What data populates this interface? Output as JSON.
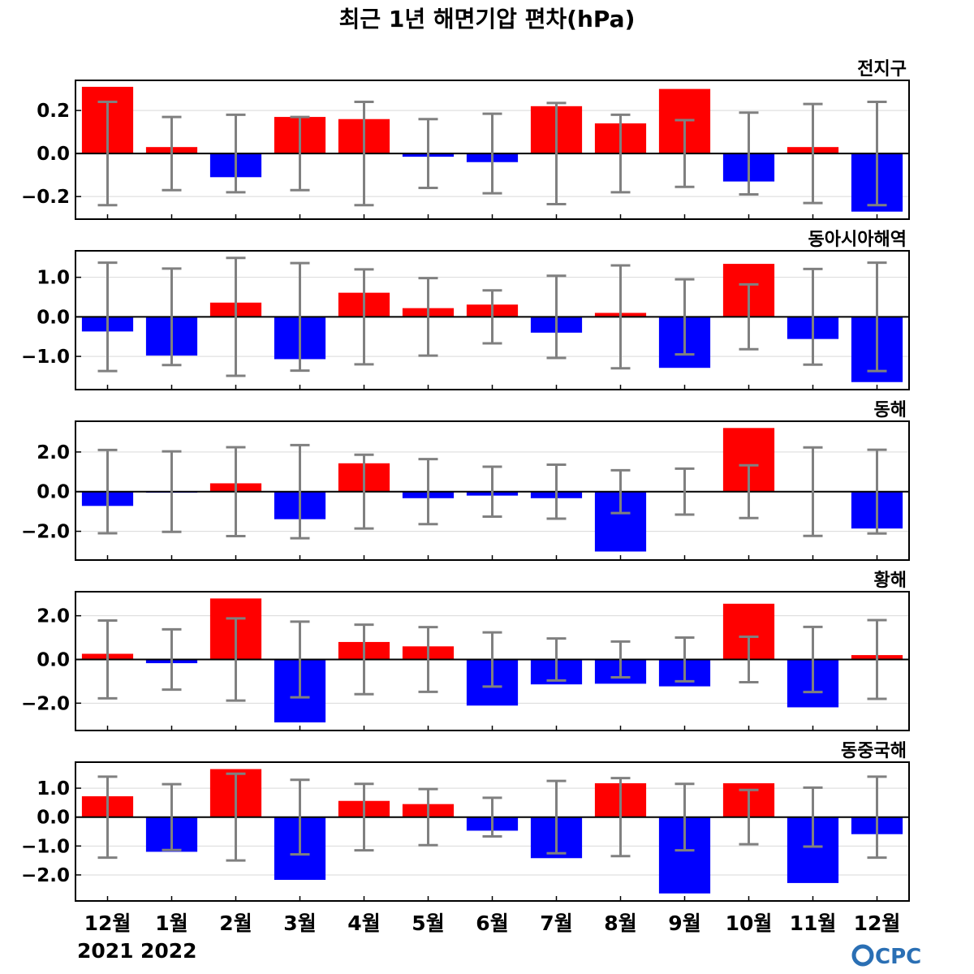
{
  "title": "최근 1년 해면기압 편차(hPa)",
  "logo_text": "CPC",
  "colors": {
    "positive": "#ff0000",
    "negative": "#0000ff",
    "errorbar": "#808080",
    "grid": "#d9d9d9"
  },
  "chart_data": [
    {
      "type": "bar",
      "title": "전지구",
      "categories": [
        "12월",
        "1월",
        "2월",
        "3월",
        "4월",
        "5월",
        "6월",
        "7월",
        "8월",
        "9월",
        "10월",
        "11월",
        "12월"
      ],
      "year_labels": [
        "2021",
        "2022"
      ],
      "values": [
        0.31,
        0.03,
        -0.11,
        0.17,
        0.16,
        -0.015,
        -0.04,
        0.22,
        0.14,
        0.3,
        -0.13,
        0.03,
        -0.27
      ],
      "error": [
        0.24,
        0.17,
        0.18,
        0.17,
        0.24,
        0.16,
        0.185,
        0.235,
        0.18,
        0.155,
        0.19,
        0.23,
        0.24
      ],
      "ylim": [
        -0.305,
        0.34
      ],
      "yticks": [
        -0.2,
        0.0,
        0.2
      ],
      "ytick_labels": [
        "−0.2",
        "0.0",
        "0.2"
      ],
      "grid": true
    },
    {
      "type": "bar",
      "title": "동아시아해역",
      "categories": [
        "12월",
        "1월",
        "2월",
        "3월",
        "4월",
        "5월",
        "6월",
        "7월",
        "8월",
        "9월",
        "10월",
        "11월",
        "12월"
      ],
      "values": [
        -0.37,
        -0.98,
        0.36,
        -1.07,
        0.61,
        0.22,
        0.31,
        -0.4,
        0.1,
        -1.29,
        1.34,
        -0.56,
        -1.65
      ],
      "error": [
        1.37,
        1.22,
        1.49,
        1.36,
        1.2,
        0.98,
        0.67,
        1.04,
        1.3,
        0.95,
        0.82,
        1.21,
        1.37
      ],
      "ylim": [
        -1.84,
        1.67
      ],
      "yticks": [
        -1.0,
        0.0,
        1.0
      ],
      "ytick_labels": [
        "−1.0",
        "0.0",
        "1.0"
      ],
      "grid": true
    },
    {
      "type": "bar",
      "title": "동해",
      "categories": [
        "12월",
        "1월",
        "2월",
        "3월",
        "4월",
        "5월",
        "6월",
        "7월",
        "8월",
        "9월",
        "10월",
        "11월",
        "12월"
      ],
      "values": [
        -0.72,
        -0.05,
        0.42,
        -1.39,
        1.43,
        -0.33,
        -0.2,
        -0.33,
        -3.02,
        0.03,
        3.21,
        0.03,
        -1.86
      ],
      "error": [
        2.1,
        2.03,
        2.24,
        2.35,
        1.86,
        1.64,
        1.26,
        1.36,
        1.08,
        1.16,
        1.33,
        2.23,
        2.11
      ],
      "ylim": [
        -3.45,
        3.55
      ],
      "yticks": [
        -2.0,
        0.0,
        2.0
      ],
      "ytick_labels": [
        "−2.0",
        "0.0",
        "2.0"
      ],
      "grid": true
    },
    {
      "type": "bar",
      "title": "황해",
      "categories": [
        "12월",
        "1월",
        "2월",
        "3월",
        "4월",
        "5월",
        "6월",
        "7월",
        "8월",
        "9월",
        "10월",
        "11월",
        "12월"
      ],
      "values": [
        0.26,
        -0.17,
        2.79,
        -2.88,
        0.8,
        0.6,
        -2.11,
        -1.14,
        -1.11,
        -1.23,
        2.55,
        -2.19,
        0.2
      ],
      "error": [
        1.78,
        1.38,
        1.88,
        1.73,
        1.59,
        1.48,
        1.24,
        0.96,
        0.82,
        1.0,
        1.04,
        1.49,
        1.8
      ],
      "ylim": [
        -3.25,
        3.1
      ],
      "yticks": [
        -2.0,
        0.0,
        2.0
      ],
      "ytick_labels": [
        "−2.0",
        "0.0",
        "2.0"
      ],
      "grid": true
    },
    {
      "type": "bar",
      "title": "동중국해",
      "categories": [
        "12월",
        "1월",
        "2월",
        "3월",
        "4월",
        "5월",
        "6월",
        "7월",
        "8월",
        "9월",
        "10월",
        "11월",
        "12월"
      ],
      "values": [
        0.72,
        -1.2,
        1.66,
        -2.17,
        0.56,
        0.45,
        -0.47,
        -1.42,
        1.17,
        -2.64,
        1.17,
        -2.28,
        -0.59
      ],
      "error": [
        1.4,
        1.14,
        1.5,
        1.29,
        1.15,
        0.97,
        0.67,
        1.25,
        1.35,
        1.15,
        0.94,
        1.02,
        1.4
      ],
      "ylim": [
        -2.9,
        1.9
      ],
      "yticks": [
        -2.0,
        -1.0,
        0.0,
        1.0
      ],
      "ytick_labels": [
        "−2.0",
        "−1.0",
        "0.0",
        "1.0"
      ],
      "grid": true
    }
  ]
}
